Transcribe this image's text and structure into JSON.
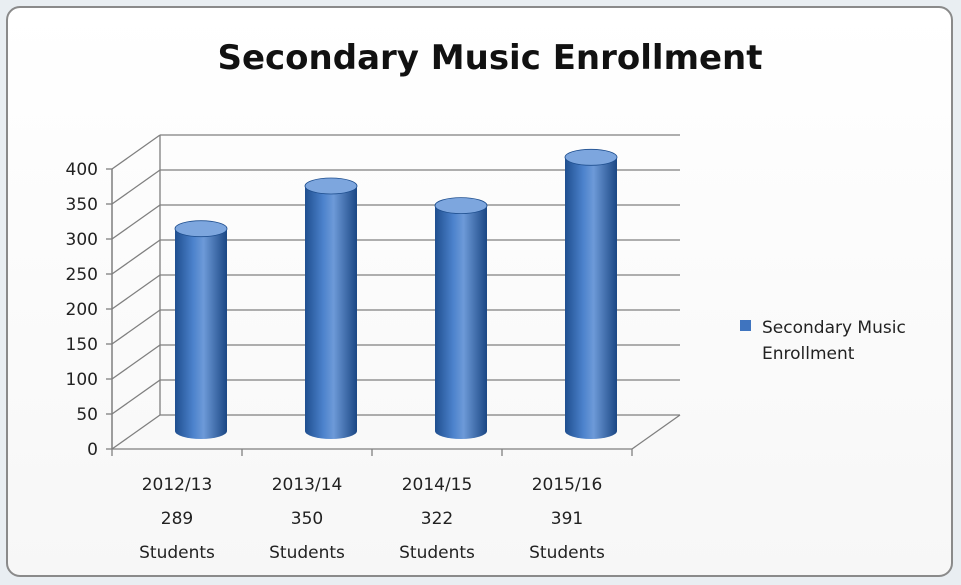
{
  "chart_data": {
    "type": "bar",
    "title": "Secondary Music Enrollment",
    "categories": [
      [
        "2012/13",
        "289",
        "Students"
      ],
      [
        "2013/14",
        "350",
        "Students"
      ],
      [
        "2014/15",
        "322",
        "Students"
      ],
      [
        "2015/16",
        "391",
        "Students"
      ]
    ],
    "series": [
      {
        "name": "Secondary Music Enrollment",
        "values": [
          289,
          350,
          322,
          391
        ]
      }
    ],
    "ylim": [
      0,
      400
    ],
    "yticks": [
      "0",
      "50",
      "100",
      "150",
      "200",
      "250",
      "300",
      "350",
      "400"
    ],
    "grid": true,
    "legend_position": "right",
    "bar_style": "3d-cylinder",
    "colors": {
      "bar": "#3f74bf",
      "bar_dark": "#1f4f8f",
      "bar_light": "#7da6de",
      "grid": "#7f7f7f"
    }
  },
  "legend": {
    "label_line1": "Secondary Music",
    "label_line2": "Enrollment"
  }
}
